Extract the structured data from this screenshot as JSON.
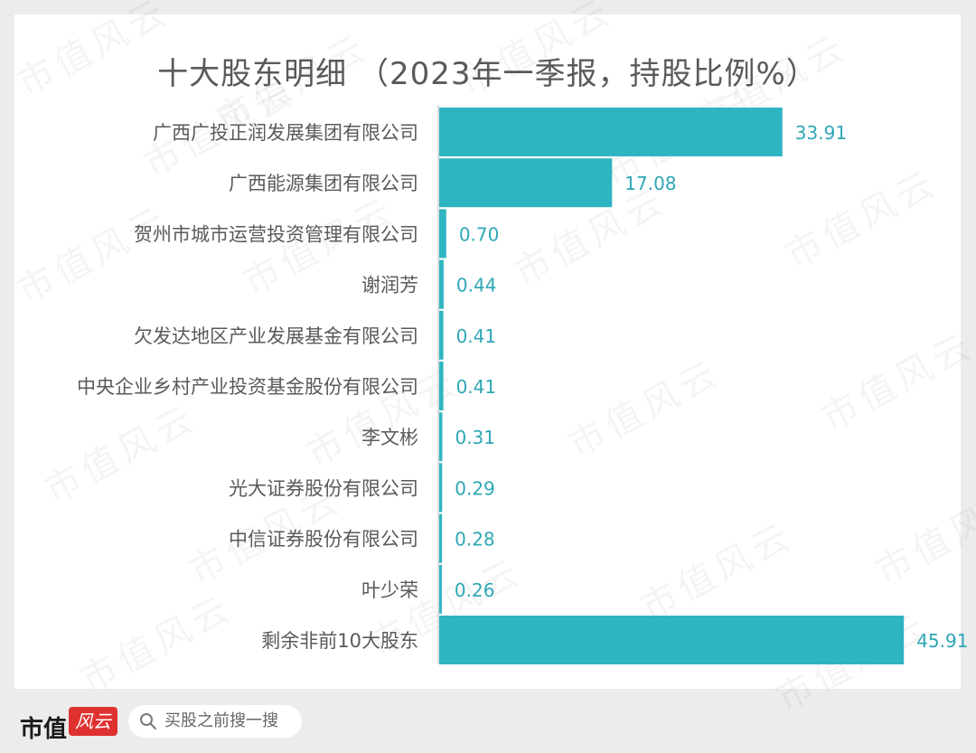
{
  "title": "十大股东明细 （2023年一季报，持股比例%）",
  "footer": {
    "brand": "市值",
    "brand_seal": "风云",
    "search_label": "买股之前搜一搜"
  },
  "watermark_text": "市值风云",
  "colors": {
    "bar": "#2fb5c2",
    "label": "#2fa7b5",
    "category": "#5a5a5a"
  },
  "chart_data": {
    "type": "bar",
    "orientation": "horizontal",
    "title": "十大股东明细 （2023年一季报，持股比例%）",
    "categories": [
      "广西广投正润发展集团有限公司",
      "广西能源集团有限公司",
      "贺州市城市运营投资管理有限公司",
      "谢润芳",
      "欠发达地区产业发展基金有限公司",
      "中央企业乡村产业投资基金股份有限公司",
      "李文彬",
      "光大证券股份有限公司",
      "中信证券股份有限公司",
      "叶少荣",
      "剩余非前10大股东"
    ],
    "values": [
      33.91,
      17.08,
      0.7,
      0.44,
      0.41,
      0.41,
      0.31,
      0.29,
      0.28,
      0.26,
      45.91
    ],
    "value_labels": [
      "33.91",
      "17.08",
      "0.70",
      "0.44",
      "0.41",
      "0.41",
      "0.31",
      "0.29",
      "0.28",
      "0.26",
      "45.91"
    ],
    "xlim": [
      0,
      50
    ],
    "grid": false,
    "legend": "none"
  }
}
